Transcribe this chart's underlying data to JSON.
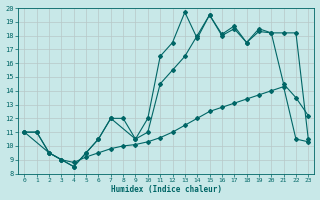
{
  "xlabel": "Humidex (Indice chaleur)",
  "bg_color": "#c8e8e8",
  "grid_color": "#b0d0d0",
  "line_color": "#006666",
  "xlim": [
    -0.5,
    23.5
  ],
  "ylim": [
    8,
    20
  ],
  "x_ticks": [
    0,
    1,
    2,
    3,
    4,
    5,
    6,
    7,
    8,
    9,
    10,
    11,
    12,
    13,
    14,
    15,
    16,
    17,
    18,
    19,
    20,
    21,
    22,
    23
  ],
  "y_ticks": [
    8,
    9,
    10,
    11,
    12,
    13,
    14,
    15,
    16,
    17,
    18,
    19,
    20
  ],
  "series1_x": [
    0,
    1,
    2,
    3,
    4,
    5,
    6,
    7,
    8,
    9,
    10,
    11,
    12,
    13,
    14,
    15,
    16,
    17,
    18,
    19,
    20,
    21,
    22,
    23
  ],
  "series1_y": [
    11,
    11,
    9.5,
    9,
    8.5,
    9.5,
    10.5,
    12,
    12,
    10.5,
    12,
    16.5,
    17.5,
    19.7,
    17.8,
    19.5,
    18.1,
    18.7,
    17.5,
    18.5,
    18.2,
    18.2,
    18.2,
    10.5
  ],
  "series2_x": [
    0,
    2,
    3,
    4,
    5,
    6,
    7,
    9,
    10,
    11,
    12,
    13,
    14,
    15,
    16,
    17,
    18,
    19,
    20,
    21,
    22,
    23
  ],
  "series2_y": [
    11,
    9.5,
    9,
    8.5,
    9.5,
    10.5,
    12,
    10.5,
    11,
    14.5,
    15.5,
    16.5,
    18,
    19.5,
    18,
    18.5,
    17.5,
    18.3,
    18.2,
    14.5,
    13.5,
    12.2
  ],
  "series3_x": [
    0,
    1,
    2,
    3,
    4,
    5,
    6,
    7,
    8,
    9,
    10,
    11,
    12,
    13,
    14,
    15,
    16,
    17,
    18,
    19,
    20,
    21,
    22,
    23
  ],
  "series3_y": [
    11,
    11,
    9.5,
    9,
    8.8,
    9.2,
    9.5,
    9.8,
    10,
    10.1,
    10.3,
    10.6,
    11,
    11.5,
    12,
    12.5,
    12.8,
    13.1,
    13.4,
    13.7,
    14,
    14.3,
    10.5,
    10.3
  ]
}
